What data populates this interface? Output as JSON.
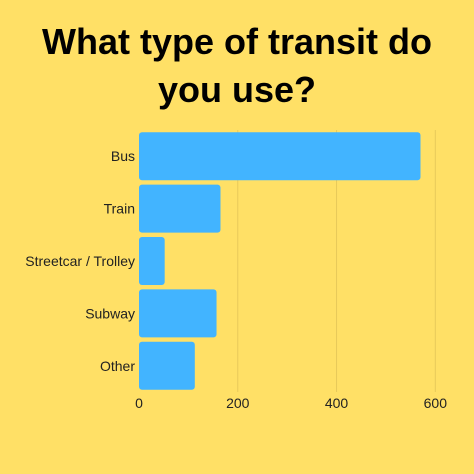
{
  "title_line1": "What type of transit do",
  "title_line2": "you use?",
  "chart_data": {
    "type": "bar",
    "orientation": "horizontal",
    "title": "What type of transit do you use?",
    "categories": [
      "Bus",
      "Train",
      "Streetcar / Trolley",
      "Subway",
      "Other"
    ],
    "values": [
      570,
      165,
      52,
      157,
      113
    ],
    "xlim": [
      0,
      650
    ],
    "xticks": [
      0,
      200,
      400,
      600
    ],
    "xlabel": "",
    "ylabel": "",
    "grid": "vertical",
    "bar_color": "#42B4FF",
    "grid_color": "#E8C95A",
    "background": "#FFE066"
  }
}
